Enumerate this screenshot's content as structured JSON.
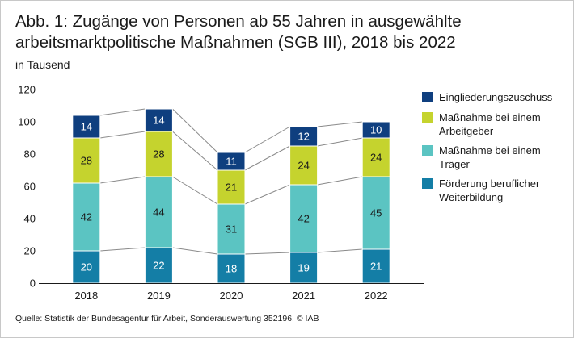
{
  "title_line1": "Abb. 1: Zugänge von Personen ab 55 Jahren in ausgewählte",
  "title_line2": "arbeitsmarktpolitische Maßnahmen (SGB III), 2018 bis 2022",
  "unit": "in Tausend",
  "source": "Quelle: Statistik der Bundesagentur für Arbeit, Sonderauswertung 352196.  © IAB",
  "chart_data": {
    "type": "bar",
    "stacked": true,
    "title": "Zugänge von Personen ab 55 Jahren in ausgewählte arbeitsmarktpolitische Maßnahmen (SGB III), 2018 bis 2022",
    "ylabel": "in Tausend",
    "xlabel": "",
    "ylim": [
      0,
      120
    ],
    "yticks": [
      0,
      20,
      40,
      60,
      80,
      100,
      120
    ],
    "categories": [
      "2018",
      "2019",
      "2020",
      "2021",
      "2022"
    ],
    "series": [
      {
        "name": "Förderung beruflicher Weiterbildung",
        "color": "#147ea6",
        "label_color": "#ffffff",
        "values": [
          20,
          22,
          18,
          19,
          21
        ]
      },
      {
        "name": "Maßnahme bei einem Träger",
        "color": "#5bc4c2",
        "label_color": "#1a1a1a",
        "values": [
          42,
          44,
          31,
          42,
          45
        ]
      },
      {
        "name": "Maßnahme bei einem Arbeitgeber",
        "color": "#c5d32e",
        "label_color": "#1a1a1a",
        "values": [
          28,
          28,
          21,
          24,
          24
        ]
      },
      {
        "name": "Eingliederungszuschuss",
        "color": "#0f3f7f",
        "label_color": "#ffffff",
        "values": [
          14,
          14,
          11,
          12,
          10
        ]
      }
    ],
    "connector_color": "#8a8a8a",
    "axis_color": "#1a1a1a"
  },
  "legend_order": [
    3,
    2,
    1,
    0
  ]
}
